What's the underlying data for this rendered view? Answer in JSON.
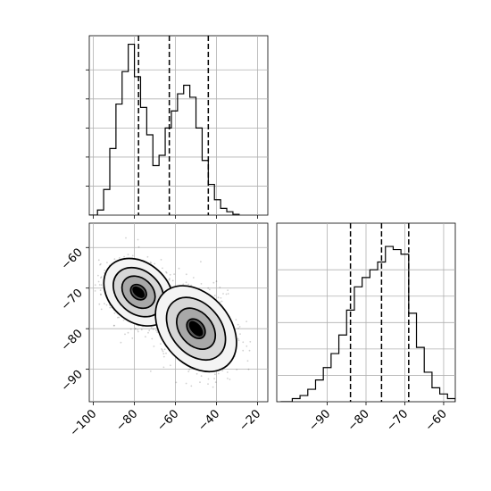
{
  "chart_data": [
    {
      "type": "histogram",
      "panel": "top-left",
      "x_axis_range": [
        -102,
        -15
      ],
      "tick_labels_shown": false,
      "grid": true,
      "bins": [
        {
          "x0": -102,
          "x1": -98,
          "density": 0.0
        },
        {
          "x0": -98,
          "x1": -95,
          "density": 0.03
        },
        {
          "x0": -95,
          "x1": -92,
          "density": 0.15
        },
        {
          "x0": -92,
          "x1": -89,
          "density": 0.39
        },
        {
          "x0": -89,
          "x1": -86,
          "density": 0.65
        },
        {
          "x0": -86,
          "x1": -83,
          "density": 0.84
        },
        {
          "x0": -83,
          "x1": -80,
          "density": 1.0
        },
        {
          "x0": -80,
          "x1": -77,
          "density": 0.81
        },
        {
          "x0": -77,
          "x1": -74,
          "density": 0.63
        },
        {
          "x0": -74,
          "x1": -71,
          "density": 0.47
        },
        {
          "x0": -71,
          "x1": -68,
          "density": 0.29
        },
        {
          "x0": -68,
          "x1": -65,
          "density": 0.35
        },
        {
          "x0": -65,
          "x1": -62,
          "density": 0.51
        },
        {
          "x0": -62,
          "x1": -59,
          "density": 0.61
        },
        {
          "x0": -59,
          "x1": -56,
          "density": 0.71
        },
        {
          "x0": -56,
          "x1": -53,
          "density": 0.76
        },
        {
          "x0": -53,
          "x1": -50,
          "density": 0.69
        },
        {
          "x0": -50,
          "x1": -47,
          "density": 0.51
        },
        {
          "x0": -47,
          "x1": -44,
          "density": 0.32
        },
        {
          "x0": -44,
          "x1": -41,
          "density": 0.18
        },
        {
          "x0": -41,
          "x1": -38,
          "density": 0.09
        },
        {
          "x0": -38,
          "x1": -35,
          "density": 0.04
        },
        {
          "x0": -35,
          "x1": -32,
          "density": 0.02
        },
        {
          "x0": -32,
          "x1": -29,
          "density": 0.005
        }
      ],
      "quantile_lines": [
        -78,
        -63,
        -44
      ]
    },
    {
      "type": "scatter-contour",
      "panel": "bottom-left",
      "x_ticks": [
        -100,
        -80,
        -60,
        -40,
        -20
      ],
      "y_ticks": [
        -60,
        -70,
        -80,
        -90
      ],
      "x_range": [
        -102,
        -15
      ],
      "y_range": [
        -98,
        -54
      ],
      "grid": true,
      "clusters": [
        {
          "center_x": -78,
          "center_y": -71,
          "spread_x": 6,
          "spread_y": 4,
          "angle_deg": -48
        },
        {
          "center_x": -50,
          "center_y": -80,
          "spread_x": 7,
          "spread_y": 5,
          "angle_deg": -40
        }
      ]
    },
    {
      "type": "histogram",
      "panel": "bottom-right",
      "x_ticks": [
        -90,
        -80,
        -70,
        -60
      ],
      "x_range": [
        -103,
        -57
      ],
      "tick_labels_shown": true,
      "grid": true,
      "bins": [
        {
          "x0": -102,
          "x1": -99,
          "density": 0.0
        },
        {
          "x0": -99,
          "x1": -97,
          "density": 0.02
        },
        {
          "x0": -97,
          "x1": -95,
          "density": 0.04
        },
        {
          "x0": -95,
          "x1": -93,
          "density": 0.08
        },
        {
          "x0": -93,
          "x1": -91,
          "density": 0.14
        },
        {
          "x0": -91,
          "x1": -89,
          "density": 0.22
        },
        {
          "x0": -89,
          "x1": -87,
          "density": 0.31
        },
        {
          "x0": -87,
          "x1": -85,
          "density": 0.43
        },
        {
          "x0": -85,
          "x1": -83,
          "density": 0.59
        },
        {
          "x0": -83,
          "x1": -81,
          "density": 0.74
        },
        {
          "x0": -81,
          "x1": -79,
          "density": 0.8
        },
        {
          "x0": -79,
          "x1": -77,
          "density": 0.85
        },
        {
          "x0": -77,
          "x1": -75,
          "density": 0.9
        },
        {
          "x0": -75,
          "x1": -73,
          "density": 1.0
        },
        {
          "x0": -73,
          "x1": -71,
          "density": 0.98
        },
        {
          "x0": -71,
          "x1": -69,
          "density": 0.95
        },
        {
          "x0": -69,
          "x1": -67,
          "density": 0.57
        },
        {
          "x0": -67,
          "x1": -65,
          "density": 0.35
        },
        {
          "x0": -65,
          "x1": -63,
          "density": 0.19
        },
        {
          "x0": -63,
          "x1": -61,
          "density": 0.09
        },
        {
          "x0": -61,
          "x1": -59,
          "density": 0.05
        },
        {
          "x0": -59,
          "x1": -57,
          "density": 0.02
        }
      ],
      "quantile_lines": [
        -84,
        -76,
        -69
      ]
    }
  ]
}
